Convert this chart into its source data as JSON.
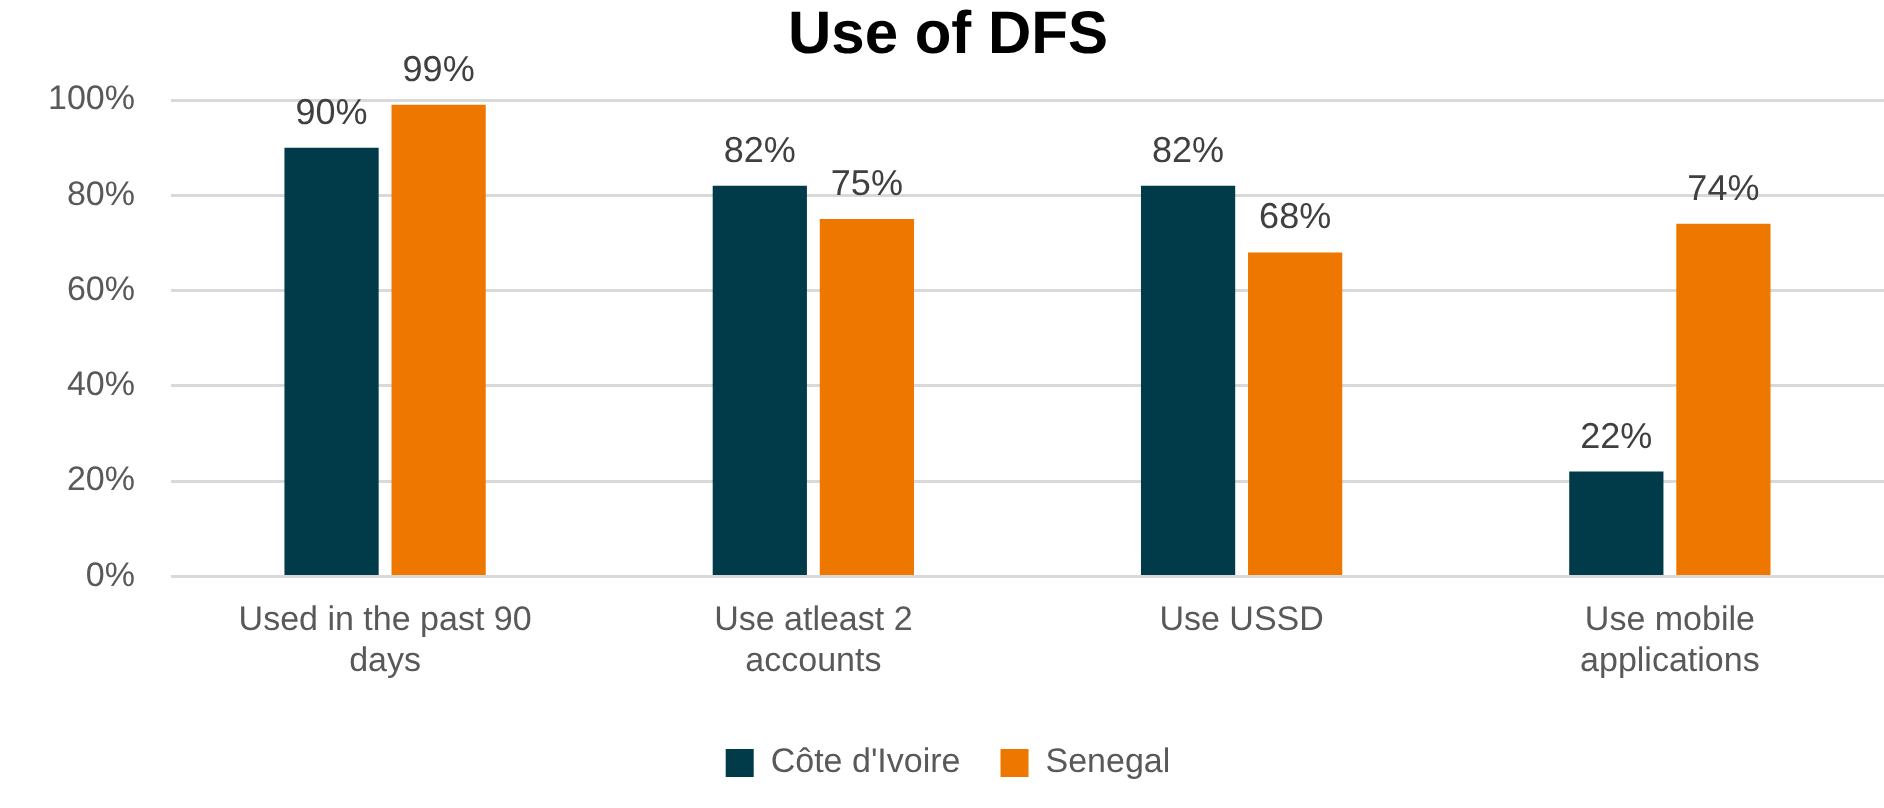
{
  "chart_data": {
    "type": "bar",
    "title": "Use of DFS",
    "categories": [
      "Used in the past 90 days",
      "Use atleast 2 accounts",
      "Use USSD",
      "Use mobile applications"
    ],
    "series": [
      {
        "name": "Côte d'Ivoire",
        "color": "#013a48",
        "values": [
          90,
          82,
          82,
          22
        ],
        "value_labels": [
          "90%",
          "82%",
          "82%",
          "22%"
        ]
      },
      {
        "name": "Senegal",
        "color": "#ee7700",
        "values": [
          99,
          75,
          68,
          74
        ],
        "value_labels": [
          "99%",
          "75%",
          "68%",
          "74%"
        ]
      }
    ],
    "ylim": [
      0,
      100
    ],
    "yticks": [
      {
        "value": 0,
        "label": "0%"
      },
      {
        "value": 20,
        "label": "20%"
      },
      {
        "value": 40,
        "label": "40%"
      },
      {
        "value": 60,
        "label": "60%"
      },
      {
        "value": 80,
        "label": "80%"
      },
      {
        "value": 100,
        "label": "100%"
      }
    ],
    "grid": "y",
    "legend": "bottom"
  }
}
